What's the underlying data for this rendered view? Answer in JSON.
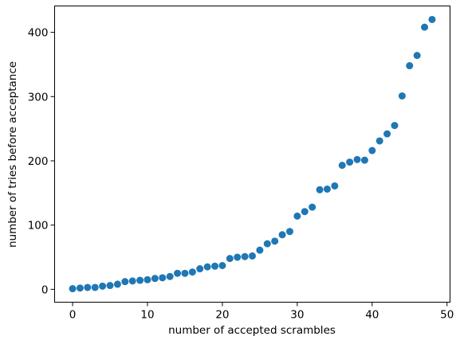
{
  "chart_data": {
    "type": "scatter",
    "title": "",
    "xlabel": "number of accepted scrambles",
    "ylabel": "number of tries before acceptance",
    "xlim": [
      -2.4,
      50.4
    ],
    "ylim": [
      -20,
      441
    ],
    "xticks": [
      0,
      10,
      20,
      30,
      40,
      50
    ],
    "yticks": [
      0,
      100,
      200,
      300,
      400
    ],
    "grid": false,
    "marker_color": "#1f77b4",
    "series": [
      {
        "x": [
          0,
          1,
          2,
          3,
          4,
          5,
          6,
          7,
          8,
          9,
          10,
          11,
          12,
          13,
          14,
          15,
          16,
          17,
          18,
          19,
          20,
          21,
          22,
          23,
          24,
          25,
          26,
          27,
          28,
          29,
          30,
          31,
          32,
          33,
          34,
          35,
          36,
          37,
          38,
          39,
          40,
          41,
          42,
          43,
          44,
          45,
          46,
          47,
          48
        ],
        "y": [
          1,
          2,
          3,
          3,
          5,
          6,
          8,
          12,
          13,
          14,
          15,
          17,
          18,
          20,
          25,
          25,
          27,
          32,
          35,
          36,
          37,
          48,
          50,
          51,
          52,
          61,
          71,
          75,
          85,
          90,
          114,
          121,
          128,
          155,
          156,
          161,
          193,
          198,
          202,
          201,
          216,
          231,
          242,
          255,
          301,
          348,
          364,
          408,
          420
        ]
      }
    ]
  }
}
